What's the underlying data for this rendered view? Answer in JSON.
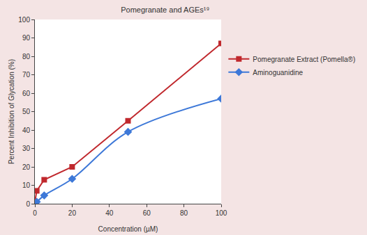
{
  "chart_data": {
    "type": "line",
    "title": "Pomegranate and AGEs¹⁹",
    "x_label": "Concentration (µM)",
    "y_label": "Percent Inhibition of Glycation (%)",
    "xlim": [
      0,
      100
    ],
    "xticks": [
      0,
      20,
      40,
      60,
      80,
      100
    ],
    "ylim": [
      0,
      100
    ],
    "yticks": [
      0,
      10,
      20,
      30,
      40,
      50,
      60,
      70,
      80,
      90,
      100
    ],
    "grid": false,
    "legend": "right",
    "series": [
      {
        "name": "Pomegranate Extract (Pomella®)",
        "color": "#c0282d",
        "marker": "square",
        "line_style": "solid",
        "x": [
          0,
          1,
          5,
          20,
          50,
          100
        ],
        "values": [
          1,
          7,
          13,
          20,
          45,
          87
        ]
      },
      {
        "name": "Aminoguanidine",
        "color": "#3d78d8",
        "marker": "diamond",
        "line_style": "smooth",
        "x": [
          0,
          1,
          5,
          20,
          50,
          100
        ],
        "values": [
          0,
          1,
          4.5,
          13.5,
          39,
          57
        ]
      }
    ]
  }
}
